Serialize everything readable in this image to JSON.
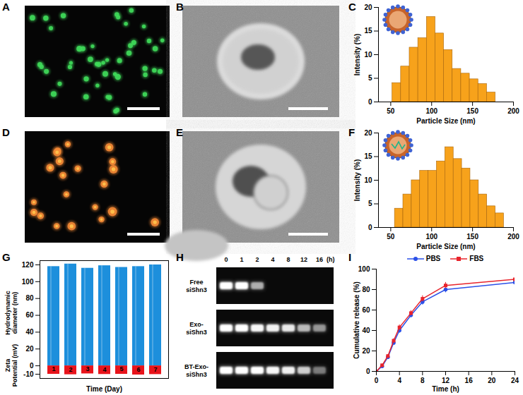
{
  "images": [
    {
      "panel": "A",
      "type": "fluorescence",
      "color": "#3fdc5a"
    },
    {
      "panel": "B",
      "type": "tem"
    },
    {
      "panel": "D",
      "type": "fluorescence",
      "color": "#f58a35"
    },
    {
      "panel": "E",
      "type": "tem"
    }
  ],
  "chart_data": [
    {
      "panel": "C",
      "type": "histogram",
      "xlabel": "Particle Size (nm)",
      "ylabel": "Intensity (%)",
      "bins": [
        52,
        62.5,
        73,
        83.5,
        94,
        104.5,
        115,
        125.5,
        136,
        146.5,
        157,
        167.5,
        178
      ],
      "values": [
        4,
        7.5,
        11.5,
        13.5,
        18,
        14.5,
        11,
        7,
        6,
        4.8,
        3.8,
        2
      ],
      "color": "#f7a21b",
      "xlim": [
        35,
        200
      ],
      "xticks": [
        50,
        100,
        150,
        200
      ],
      "ylim": [
        0,
        20
      ],
      "yticks": [
        0,
        5,
        10,
        15,
        20
      ]
    },
    {
      "panel": "F",
      "type": "histogram",
      "xlabel": "Particle Size (nm)",
      "ylabel": "Intensity (%)",
      "bins": [
        55,
        65.25,
        75.5,
        85.75,
        96,
        106.25,
        116.5,
        126.75,
        137,
        147.25,
        157.5,
        167.75,
        178,
        188.25
      ],
      "values": [
        4,
        7,
        10,
        12,
        12,
        14,
        17,
        14.5,
        12.5,
        10,
        7,
        4.5,
        3
      ],
      "color": "#f7a21b",
      "xlim": [
        35,
        200
      ],
      "xticks": [
        50,
        100,
        150,
        200
      ],
      "ylim": [
        0,
        20
      ],
      "yticks": [
        0,
        5,
        10,
        15,
        20
      ]
    },
    {
      "panel": "G",
      "type": "bar",
      "xlabel": "Time (Day)",
      "categories": [
        "1",
        "2",
        "3",
        "4",
        "5",
        "6",
        "7"
      ],
      "series": [
        {
          "name": "Hydrodynamic diameter (nm)",
          "color": "#1d8fdc",
          "values": [
            118,
            121,
            116,
            119,
            117,
            118,
            120
          ]
        },
        {
          "name": "Zeta Potential (mV)",
          "color": "#e8141b",
          "values": [
            -10,
            -10.5,
            -9.5,
            -10.2,
            -10,
            -10.8,
            -10.3
          ]
        }
      ],
      "ylim": [
        -15,
        125
      ],
      "yticks": [
        -10,
        0,
        20,
        40,
        60,
        80,
        100,
        120
      ],
      "tick_labels": "y"
    },
    {
      "panel": "H",
      "type": "gel",
      "xlabel": "(h)",
      "categories": [
        "0",
        "1",
        "2",
        "4",
        "8",
        "12",
        "16"
      ],
      "series": [
        {
          "name": "Free siShn3",
          "values": [
            1,
            1,
            0.55,
            0,
            0,
            0,
            0
          ]
        },
        {
          "name": "Exo-siShn3",
          "values": [
            1,
            1,
            0.95,
            0.9,
            0.85,
            0.6,
            0.45
          ]
        },
        {
          "name": "BT-Exo-siShn3",
          "values": [
            1,
            1,
            1,
            0.95,
            0.9,
            0.7,
            0.35
          ]
        }
      ]
    },
    {
      "panel": "I",
      "type": "line",
      "xlabel": "Time (h)",
      "ylabel": "Cumulative release (%)",
      "x": [
        0,
        1,
        2,
        3,
        4,
        6,
        8,
        12,
        24
      ],
      "series": [
        {
          "name": "PBS",
          "color": "#2b50e8",
          "marker": "circle",
          "values": [
            0,
            5,
            14,
            28,
            40,
            55,
            68,
            80,
            87
          ],
          "errors": [
            0,
            1,
            1.5,
            2,
            2.5,
            2.5,
            3,
            3,
            2.5
          ]
        },
        {
          "name": "FBS",
          "color": "#e8242c",
          "marker": "square",
          "values": [
            0,
            6,
            15,
            30,
            43,
            57,
            71,
            84,
            90
          ],
          "errors": [
            0,
            1,
            1.5,
            2,
            2.5,
            2.5,
            3,
            3,
            2.5
          ]
        }
      ],
      "xlim": [
        0,
        24
      ],
      "xticks": [
        0,
        4,
        8,
        12,
        16,
        20,
        24
      ],
      "ylim": [
        0,
        100
      ],
      "yticks": [
        0,
        20,
        40,
        60,
        80,
        100
      ],
      "legend": "top"
    }
  ]
}
